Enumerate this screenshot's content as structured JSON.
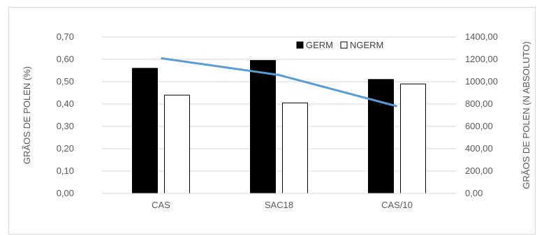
{
  "chart_data": {
    "type": "bar",
    "categories": [
      "CAS",
      "SAC18",
      "CAS/10"
    ],
    "series": [
      {
        "name": "GERM",
        "kind": "bar",
        "axis": "left",
        "values": [
          0.56,
          0.595,
          0.51
        ],
        "fill": "#000000",
        "stroke": "#000000"
      },
      {
        "name": "NGERM",
        "kind": "bar",
        "axis": "left",
        "values": [
          0.44,
          0.405,
          0.49
        ],
        "fill": "#ffffff",
        "stroke": "#000000"
      },
      {
        "kind": "line",
        "axis": "right",
        "values": [
          1210,
          1060,
          780
        ],
        "color": "#5b9bd5"
      }
    ],
    "ylabel": "GRÃOS DE POLEN (%)",
    "y2label": "GRÃOS DE POLEN (N ABSOLUTO)",
    "ylim": [
      0,
      0.7
    ],
    "y2lim": [
      0,
      1400
    ],
    "yticks": [
      "0,00",
      "0,10",
      "0,20",
      "0,30",
      "0,40",
      "0,50",
      "0,60",
      "0,70"
    ],
    "y2ticks": [
      "0,00",
      "200,00",
      "400,00",
      "600,00",
      "800,00",
      "1000,00",
      "1200,00",
      "1400,00"
    ],
    "grid": true,
    "legend_position": "top-center"
  }
}
